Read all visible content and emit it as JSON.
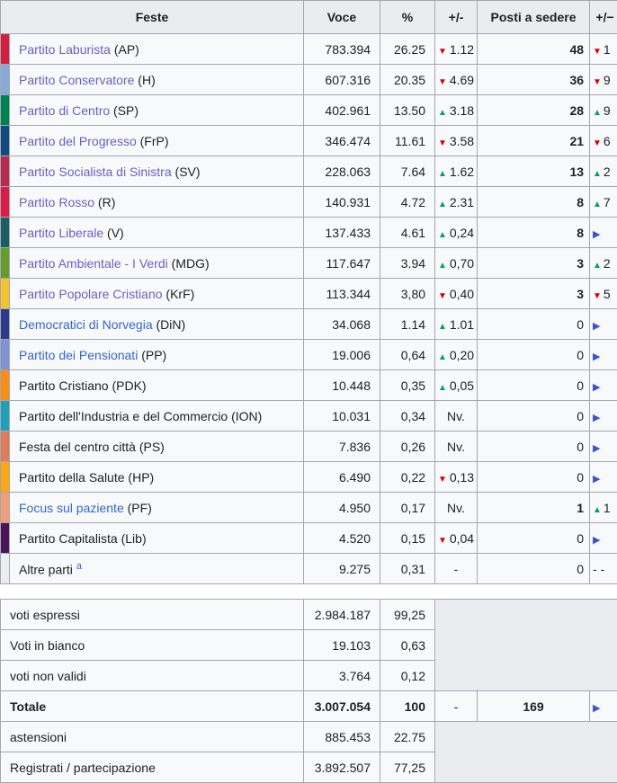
{
  "table": {
    "headers": {
      "party": "Feste",
      "votes": "Voce",
      "pct": "%",
      "change": "+/-",
      "seats": "Posti a sedere",
      "seats_change": "+/−"
    },
    "colors": {
      "up_green": "#00a550",
      "down_red": "#d40000",
      "steady_blue": "#3b53d1",
      "visited_link": "#6a5fc1",
      "link_blue": "#3366cc",
      "header_bg": "#eaecf0",
      "cell_bg": "#f8f9fa",
      "border": "#a2a9b1"
    },
    "parties": [
      {
        "color": "#d4203c",
        "name": "Partito Laburista",
        "abbr": "(AP)",
        "link": "visited",
        "votes": "783.394",
        "pct": "26.25",
        "change_dir": "down",
        "change": "1.12",
        "seats": "48",
        "seats_bold": true,
        "seat_change_dir": "down",
        "seat_change": "1"
      },
      {
        "color": "#8aa9d6",
        "name": "Partito Conservatore",
        "abbr": "(H)",
        "link": "visited",
        "votes": "607.316",
        "pct": "20.35",
        "change_dir": "down",
        "change": "4.69",
        "seats": "36",
        "seats_bold": true,
        "seat_change_dir": "down",
        "seat_change": "9"
      },
      {
        "color": "#008150",
        "name": "Partito di Centro",
        "abbr": "(SP)",
        "link": "visited",
        "votes": "402.961",
        "pct": "13.50",
        "change_dir": "up",
        "change": "3.18",
        "seats": "28",
        "seats_bold": true,
        "seat_change_dir": "up",
        "seat_change": "9"
      },
      {
        "color": "#114a7f",
        "name": "Partito del Progresso",
        "abbr": "(FrP)",
        "link": "visited",
        "votes": "346.474",
        "pct": "11.61",
        "change_dir": "down",
        "change": "3.58",
        "seats": "21",
        "seats_bold": true,
        "seat_change_dir": "down",
        "seat_change": "6"
      },
      {
        "color": "#b8294f",
        "name": "Partito Socialista di Sinistra",
        "abbr": "(SV)",
        "link": "visited",
        "votes": "228.063",
        "pct": "7.64",
        "change_dir": "up",
        "change": "1.62",
        "seats": "13",
        "seats_bold": true,
        "seat_change_dir": "up",
        "seat_change": "2"
      },
      {
        "color": "#de1b44",
        "name": "Partito Rosso",
        "abbr": "(R)",
        "link": "visited",
        "votes": "140.931",
        "pct": "4.72",
        "change_dir": "up",
        "change": "2.31",
        "seats": "8",
        "seats_bold": true,
        "seat_change_dir": "up",
        "seat_change": "7"
      },
      {
        "color": "#1a5e63",
        "name": "Partito Liberale",
        "abbr": "(V)",
        "link": "visited",
        "votes": "137.433",
        "pct": "4.61",
        "change_dir": "up",
        "change": "0,24",
        "seats": "8",
        "seats_bold": true,
        "seat_change_dir": "steady",
        "seat_change": ""
      },
      {
        "color": "#669c2c",
        "name": "Partito Ambientale - I Verdi",
        "abbr": "(MDG)",
        "link": "visited",
        "votes": "117.647",
        "pct": "3.94",
        "change_dir": "up",
        "change": "0,70",
        "seats": "3",
        "seats_bold": true,
        "seat_change_dir": "up",
        "seat_change": "2"
      },
      {
        "color": "#f3c22d",
        "name": "Partito Popolare Cristiano",
        "abbr": "(KrF)",
        "link": "visited",
        "votes": "113.344",
        "pct": "3,80",
        "change_dir": "down",
        "change": "0,40",
        "seats": "3",
        "seats_bold": true,
        "seat_change_dir": "down",
        "seat_change": "5"
      },
      {
        "color": "#2e3b8d",
        "name": "Democratici di Norvegia",
        "abbr": "(DiN)",
        "link": "blue",
        "votes": "34.068",
        "pct": "1.14",
        "change_dir": "up",
        "change": "1.01",
        "seats": "0",
        "seats_bold": false,
        "seat_change_dir": "steady",
        "seat_change": ""
      },
      {
        "color": "#7f92d2",
        "name": "Partito dei Pensionati",
        "abbr": "(PP)",
        "link": "blue",
        "votes": "19.006",
        "pct": "0,64",
        "change_dir": "up",
        "change": "0,20",
        "seats": "0",
        "seats_bold": false,
        "seat_change_dir": "steady",
        "seat_change": ""
      },
      {
        "color": "#fb8d15",
        "name": "Partito Cristiano",
        "abbr": "(PDK)",
        "link": "none",
        "votes": "10.448",
        "pct": "0,35",
        "change_dir": "up",
        "change": "0,05",
        "seats": "0",
        "seats_bold": false,
        "seat_change_dir": "steady",
        "seat_change": ""
      },
      {
        "color": "#20a0b8",
        "name": "Partito dell'Industria e del Commercio",
        "abbr": "(ION)",
        "link": "none",
        "votes": "10.031",
        "pct": "0,34",
        "change_dir": "none",
        "change": "Nv.",
        "seats": "0",
        "seats_bold": false,
        "seat_change_dir": "steady",
        "seat_change": ""
      },
      {
        "color": "#e07c59",
        "name": "Festa del centro città",
        "abbr": "(PS)",
        "link": "none",
        "votes": "7.836",
        "pct": "0,26",
        "change_dir": "none",
        "change": "Nv.",
        "seats": "0",
        "seats_bold": false,
        "seat_change_dir": "steady",
        "seat_change": ""
      },
      {
        "color": "#fda713",
        "name": "Partito della Salute",
        "abbr": "(HP)",
        "link": "none",
        "votes": "6.490",
        "pct": "0,22",
        "change_dir": "down",
        "change": "0,13",
        "seats": "0",
        "seats_bold": false,
        "seat_change_dir": "steady",
        "seat_change": ""
      },
      {
        "color": "#efa078",
        "name": "Focus sul paziente",
        "abbr": "(PF)",
        "link": "blue",
        "votes": "4.950",
        "pct": "0,17",
        "change_dir": "none",
        "change": "Nv.",
        "seats": "1",
        "seats_bold": true,
        "seat_change_dir": "up",
        "seat_change": "1"
      },
      {
        "color": "#4a1457",
        "name": "Partito Capitalista",
        "abbr": "(Lib)",
        "link": "none",
        "votes": "4.520",
        "pct": "0,15",
        "change_dir": "down",
        "change": "0,04",
        "seats": "0",
        "seats_bold": false,
        "seat_change_dir": "steady",
        "seat_change": ""
      },
      {
        "color": "#ecedf1",
        "name": "Altre parti",
        "abbr": "",
        "sup": "a",
        "link": "none",
        "votes": "9.275",
        "pct": "0,31",
        "change_dir": "none",
        "change": "-",
        "seats": "0",
        "seats_bold": false,
        "seat_change_dir": "none",
        "seat_change": "-"
      }
    ],
    "summary": [
      {
        "type": "gray3",
        "label": "voti espressi",
        "votes": "2.984.187",
        "pct": "99,25"
      },
      {
        "type": "plain",
        "label": "Voti in bianco",
        "votes": "19.103",
        "pct": "0,63"
      },
      {
        "type": "plain",
        "label": "voti non validi",
        "votes": "3.764",
        "pct": "0,12"
      },
      {
        "type": "total",
        "label": "Totale",
        "votes": "3.007.054",
        "pct": "100",
        "change": "-",
        "seats": "169",
        "seat_change_dir": "steady"
      },
      {
        "type": "gray2",
        "label": "astensioni",
        "votes": "885.453",
        "pct": "22.75"
      },
      {
        "type": "plain",
        "label": "Registrati / partecipazione",
        "votes": "3.892.507",
        "pct": "77,25"
      }
    ]
  }
}
